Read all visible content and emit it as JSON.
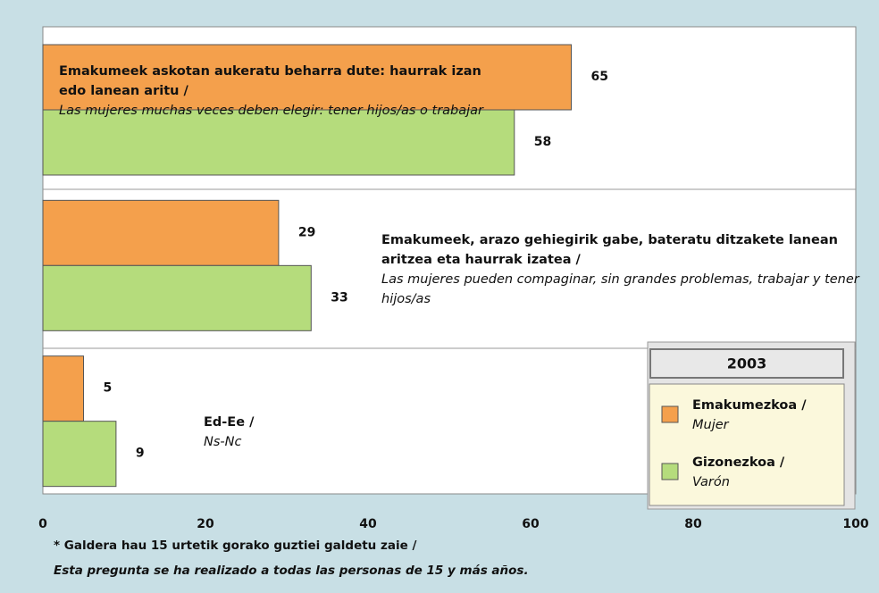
{
  "chart_data": {
    "type": "barh",
    "categories": [
      {
        "text": "Emakumeek askotan aukeratu beharra dute: haurrak izan edo lanean aritu /",
        "translation": "Las mujeres muchas veces deben elegir: tener hijos/as o trabajar"
      },
      {
        "text": "Emakumeek, arazo gehiegirik gabe, bateratu ditzakete lanean aritzea eta haurrak izatea /",
        "translation": "Las mujeres pueden compaginar, sin grandes problemas, trabajar y tener hijos/as"
      },
      {
        "text": "Ed-Ee /",
        "translation": "Ns-Nc"
      }
    ],
    "series": [
      {
        "name": "Emakumezkoa /",
        "name_translation": "Mujer",
        "color": "#f4a04c",
        "values": [
          65,
          29,
          5
        ]
      },
      {
        "name": "Gizonezkoa /",
        "name_translation": "Varón",
        "color": "#b5dc7c",
        "values": [
          58,
          33,
          9
        ]
      }
    ],
    "xlim": [
      0,
      100
    ],
    "xticks": [
      0,
      20,
      40,
      60,
      80,
      100
    ],
    "legend_title": "2003",
    "footnote": {
      "text": "* Galdera hau 15 urtetik gorako guztiei galdetu zaie /",
      "translation": "Esta pregunta se ha realizado a todas las personas de 15 y más años."
    }
  }
}
